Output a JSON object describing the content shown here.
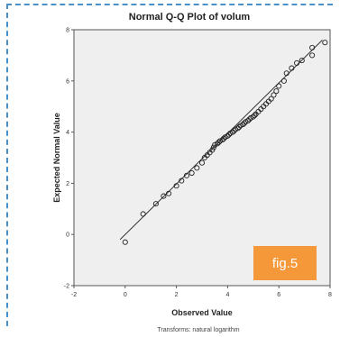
{
  "figure_label": "fig.5",
  "footnote": "Transforms: natural logarithm",
  "chart_data": {
    "type": "scatter",
    "title": "Normal Q-Q Plot of volum",
    "xlabel": "Observed Value",
    "ylabel": "Expected Normal Value",
    "xlim": [
      -2,
      8
    ],
    "ylim": [
      -2,
      8
    ],
    "xticks": [
      -2,
      0,
      2,
      4,
      6,
      8
    ],
    "yticks": [
      -2,
      0,
      2,
      4,
      6,
      8
    ],
    "grid": false,
    "reference_line": {
      "x": [
        -0.2,
        7.7
      ],
      "y": [
        -0.2,
        7.6
      ]
    },
    "points": [
      {
        "x": 0.0,
        "y": -0.3
      },
      {
        "x": 0.7,
        "y": 0.8
      },
      {
        "x": 1.2,
        "y": 1.2
      },
      {
        "x": 1.5,
        "y": 1.5
      },
      {
        "x": 1.7,
        "y": 1.6
      },
      {
        "x": 2.0,
        "y": 1.9
      },
      {
        "x": 2.2,
        "y": 2.1
      },
      {
        "x": 2.4,
        "y": 2.3
      },
      {
        "x": 2.6,
        "y": 2.4
      },
      {
        "x": 2.8,
        "y": 2.6
      },
      {
        "x": 3.0,
        "y": 2.8
      },
      {
        "x": 3.1,
        "y": 3.0
      },
      {
        "x": 3.2,
        "y": 3.1
      },
      {
        "x": 3.3,
        "y": 3.2
      },
      {
        "x": 3.4,
        "y": 3.3
      },
      {
        "x": 3.45,
        "y": 3.4
      },
      {
        "x": 3.5,
        "y": 3.5
      },
      {
        "x": 3.6,
        "y": 3.55
      },
      {
        "x": 3.65,
        "y": 3.6
      },
      {
        "x": 3.7,
        "y": 3.65
      },
      {
        "x": 3.8,
        "y": 3.7
      },
      {
        "x": 3.85,
        "y": 3.75
      },
      {
        "x": 3.9,
        "y": 3.8
      },
      {
        "x": 4.0,
        "y": 3.85
      },
      {
        "x": 4.05,
        "y": 3.9
      },
      {
        "x": 4.1,
        "y": 3.95
      },
      {
        "x": 4.2,
        "y": 4.0
      },
      {
        "x": 4.25,
        "y": 4.05
      },
      {
        "x": 4.3,
        "y": 4.1
      },
      {
        "x": 4.4,
        "y": 4.15
      },
      {
        "x": 4.45,
        "y": 4.2
      },
      {
        "x": 4.5,
        "y": 4.25
      },
      {
        "x": 4.6,
        "y": 4.3
      },
      {
        "x": 4.65,
        "y": 4.35
      },
      {
        "x": 4.7,
        "y": 4.4
      },
      {
        "x": 4.8,
        "y": 4.45
      },
      {
        "x": 4.85,
        "y": 4.5
      },
      {
        "x": 4.9,
        "y": 4.55
      },
      {
        "x": 5.0,
        "y": 4.6
      },
      {
        "x": 5.05,
        "y": 4.65
      },
      {
        "x": 5.1,
        "y": 4.7
      },
      {
        "x": 5.2,
        "y": 4.8
      },
      {
        "x": 5.3,
        "y": 4.9
      },
      {
        "x": 5.4,
        "y": 5.0
      },
      {
        "x": 5.5,
        "y": 5.1
      },
      {
        "x": 5.6,
        "y": 5.2
      },
      {
        "x": 5.7,
        "y": 5.3
      },
      {
        "x": 5.8,
        "y": 5.45
      },
      {
        "x": 5.9,
        "y": 5.6
      },
      {
        "x": 6.0,
        "y": 5.8
      },
      {
        "x": 6.2,
        "y": 6.0
      },
      {
        "x": 6.3,
        "y": 6.3
      },
      {
        "x": 6.5,
        "y": 6.5
      },
      {
        "x": 6.7,
        "y": 6.7
      },
      {
        "x": 6.9,
        "y": 6.8
      },
      {
        "x": 7.3,
        "y": 7.0
      },
      {
        "x": 7.3,
        "y": 7.3
      },
      {
        "x": 7.8,
        "y": 7.5
      }
    ]
  }
}
